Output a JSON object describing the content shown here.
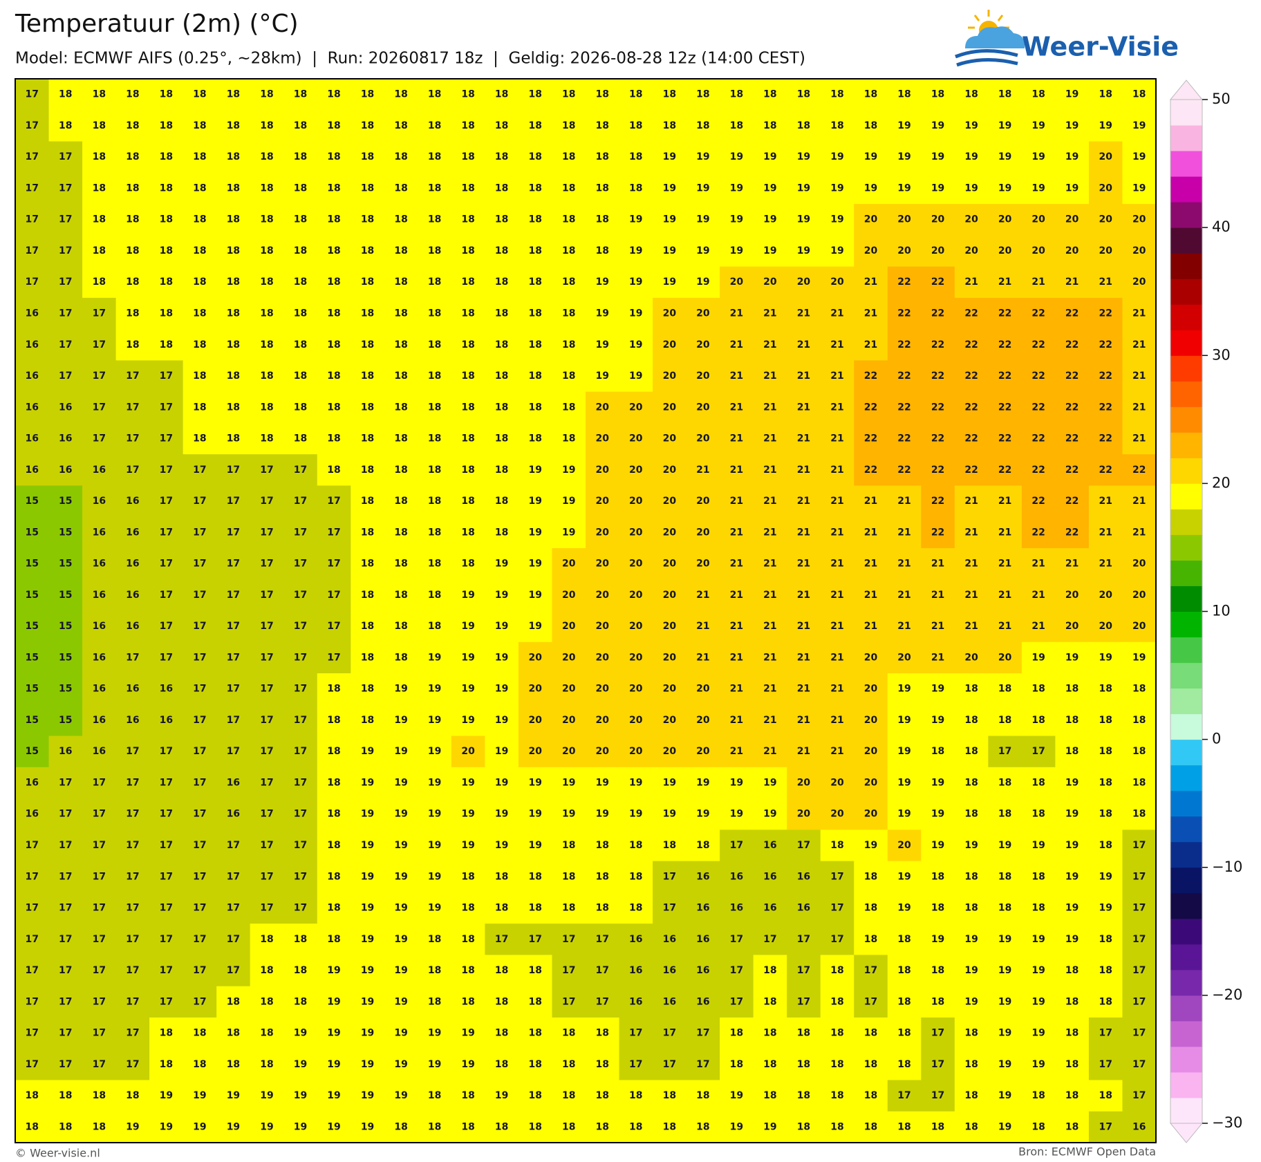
{
  "header": {
    "title": "Temperatuur (2m) (°C)",
    "subtitle": "Model: ECMWF AIFS (0.25°, ~28km)  |  Run: 20260817 18z  |  Geldig: 2026-08-28 12z (14:00 CEST)"
  },
  "logo": {
    "text": "Weer-Visie"
  },
  "grid": {
    "rows": [
      [
        17,
        18,
        18,
        18,
        18,
        18,
        18,
        18,
        18,
        18,
        18,
        18,
        18,
        18,
        18,
        18,
        18,
        18,
        18,
        18,
        18,
        18,
        18,
        18,
        18,
        18,
        18,
        18,
        18,
        18,
        18,
        19,
        18,
        18
      ],
      [
        17,
        18,
        18,
        18,
        18,
        18,
        18,
        18,
        18,
        18,
        18,
        18,
        18,
        18,
        18,
        18,
        18,
        18,
        18,
        18,
        18,
        18,
        18,
        18,
        18,
        18,
        19,
        19,
        19,
        19,
        19,
        19,
        19,
        19
      ],
      [
        17,
        17,
        18,
        18,
        18,
        18,
        18,
        18,
        18,
        18,
        18,
        18,
        18,
        18,
        18,
        18,
        18,
        18,
        18,
        19,
        19,
        19,
        19,
        19,
        19,
        19,
        19,
        19,
        19,
        19,
        19,
        19,
        20,
        19
      ],
      [
        17,
        17,
        18,
        18,
        18,
        18,
        18,
        18,
        18,
        18,
        18,
        18,
        18,
        18,
        18,
        18,
        18,
        18,
        18,
        19,
        19,
        19,
        19,
        19,
        19,
        19,
        19,
        19,
        19,
        19,
        19,
        19,
        20,
        19
      ],
      [
        17,
        17,
        18,
        18,
        18,
        18,
        18,
        18,
        18,
        18,
        18,
        18,
        18,
        18,
        18,
        18,
        18,
        18,
        19,
        19,
        19,
        19,
        19,
        19,
        19,
        20,
        20,
        20,
        20,
        20,
        20,
        20,
        20,
        20
      ],
      [
        17,
        17,
        18,
        18,
        18,
        18,
        18,
        18,
        18,
        18,
        18,
        18,
        18,
        18,
        18,
        18,
        18,
        18,
        19,
        19,
        19,
        19,
        19,
        19,
        19,
        20,
        20,
        20,
        20,
        20,
        20,
        20,
        20,
        20
      ],
      [
        17,
        17,
        18,
        18,
        18,
        18,
        18,
        18,
        18,
        18,
        18,
        18,
        18,
        18,
        18,
        18,
        18,
        19,
        19,
        19,
        19,
        20,
        20,
        20,
        20,
        21,
        22,
        22,
        21,
        21,
        21,
        21,
        21,
        20
      ],
      [
        16,
        17,
        17,
        18,
        18,
        18,
        18,
        18,
        18,
        18,
        18,
        18,
        18,
        18,
        18,
        18,
        18,
        19,
        19,
        20,
        20,
        21,
        21,
        21,
        21,
        21,
        22,
        22,
        22,
        22,
        22,
        22,
        22,
        21
      ],
      [
        16,
        17,
        17,
        18,
        18,
        18,
        18,
        18,
        18,
        18,
        18,
        18,
        18,
        18,
        18,
        18,
        18,
        19,
        19,
        20,
        20,
        21,
        21,
        21,
        21,
        21,
        22,
        22,
        22,
        22,
        22,
        22,
        22,
        21
      ],
      [
        16,
        17,
        17,
        17,
        17,
        18,
        18,
        18,
        18,
        18,
        18,
        18,
        18,
        18,
        18,
        18,
        18,
        19,
        19,
        20,
        20,
        21,
        21,
        21,
        21,
        22,
        22,
        22,
        22,
        22,
        22,
        22,
        22,
        21
      ],
      [
        16,
        16,
        17,
        17,
        17,
        18,
        18,
        18,
        18,
        18,
        18,
        18,
        18,
        18,
        18,
        18,
        18,
        20,
        20,
        20,
        20,
        21,
        21,
        21,
        21,
        22,
        22,
        22,
        22,
        22,
        22,
        22,
        22,
        21
      ],
      [
        16,
        16,
        17,
        17,
        17,
        18,
        18,
        18,
        18,
        18,
        18,
        18,
        18,
        18,
        18,
        18,
        18,
        20,
        20,
        20,
        20,
        21,
        21,
        21,
        21,
        22,
        22,
        22,
        22,
        22,
        22,
        22,
        22,
        21
      ],
      [
        16,
        16,
        16,
        17,
        17,
        17,
        17,
        17,
        17,
        18,
        18,
        18,
        18,
        18,
        18,
        19,
        19,
        20,
        20,
        20,
        21,
        21,
        21,
        21,
        21,
        22,
        22,
        22,
        22,
        22,
        22,
        22,
        22,
        22
      ],
      [
        15,
        15,
        16,
        16,
        17,
        17,
        17,
        17,
        17,
        17,
        18,
        18,
        18,
        18,
        18,
        19,
        19,
        20,
        20,
        20,
        20,
        21,
        21,
        21,
        21,
        21,
        21,
        22,
        21,
        21,
        22,
        22,
        21,
        21
      ],
      [
        15,
        15,
        16,
        16,
        17,
        17,
        17,
        17,
        17,
        17,
        18,
        18,
        18,
        18,
        18,
        19,
        19,
        20,
        20,
        20,
        20,
        21,
        21,
        21,
        21,
        21,
        21,
        22,
        21,
        21,
        22,
        22,
        21,
        21
      ],
      [
        15,
        15,
        16,
        16,
        17,
        17,
        17,
        17,
        17,
        17,
        18,
        18,
        18,
        18,
        19,
        19,
        20,
        20,
        20,
        20,
        20,
        21,
        21,
        21,
        21,
        21,
        21,
        21,
        21,
        21,
        21,
        21,
        21,
        20
      ],
      [
        15,
        15,
        16,
        16,
        17,
        17,
        17,
        17,
        17,
        17,
        18,
        18,
        18,
        19,
        19,
        19,
        20,
        20,
        20,
        20,
        21,
        21,
        21,
        21,
        21,
        21,
        21,
        21,
        21,
        21,
        21,
        20,
        20,
        20
      ],
      [
        15,
        15,
        16,
        16,
        17,
        17,
        17,
        17,
        17,
        17,
        18,
        18,
        18,
        19,
        19,
        19,
        20,
        20,
        20,
        20,
        21,
        21,
        21,
        21,
        21,
        21,
        21,
        21,
        21,
        21,
        21,
        20,
        20,
        20
      ],
      [
        15,
        15,
        16,
        17,
        17,
        17,
        17,
        17,
        17,
        17,
        18,
        18,
        19,
        19,
        19,
        20,
        20,
        20,
        20,
        20,
        21,
        21,
        21,
        21,
        21,
        20,
        20,
        21,
        20,
        20,
        19,
        19,
        19,
        19
      ],
      [
        15,
        15,
        16,
        16,
        16,
        17,
        17,
        17,
        17,
        18,
        18,
        19,
        19,
        19,
        19,
        20,
        20,
        20,
        20,
        20,
        20,
        21,
        21,
        21,
        21,
        20,
        19,
        19,
        18,
        18,
        18,
        18,
        18,
        18
      ],
      [
        15,
        15,
        16,
        16,
        16,
        17,
        17,
        17,
        17,
        18,
        18,
        19,
        19,
        19,
        19,
        20,
        20,
        20,
        20,
        20,
        20,
        21,
        21,
        21,
        21,
        20,
        19,
        19,
        18,
        18,
        18,
        18,
        18,
        18
      ],
      [
        15,
        16,
        16,
        17,
        17,
        17,
        17,
        17,
        17,
        18,
        19,
        19,
        19,
        20,
        19,
        20,
        20,
        20,
        20,
        20,
        20,
        21,
        21,
        21,
        21,
        20,
        19,
        18,
        18,
        17,
        17,
        18,
        18,
        18
      ],
      [
        16,
        17,
        17,
        17,
        17,
        17,
        16,
        17,
        17,
        18,
        19,
        19,
        19,
        19,
        19,
        19,
        19,
        19,
        19,
        19,
        19,
        19,
        19,
        20,
        20,
        20,
        19,
        19,
        18,
        18,
        18,
        19,
        18,
        18
      ],
      [
        16,
        17,
        17,
        17,
        17,
        17,
        16,
        17,
        17,
        18,
        19,
        19,
        19,
        19,
        19,
        19,
        19,
        19,
        19,
        19,
        19,
        19,
        19,
        20,
        20,
        20,
        19,
        19,
        18,
        18,
        18,
        19,
        18,
        18
      ],
      [
        17,
        17,
        17,
        17,
        17,
        17,
        17,
        17,
        17,
        18,
        19,
        19,
        19,
        19,
        19,
        19,
        18,
        18,
        18,
        18,
        18,
        17,
        16,
        17,
        18,
        19,
        20,
        19,
        19,
        19,
        19,
        19,
        18,
        17
      ],
      [
        17,
        17,
        17,
        17,
        17,
        17,
        17,
        17,
        17,
        18,
        19,
        19,
        19,
        18,
        18,
        18,
        18,
        18,
        18,
        17,
        16,
        16,
        16,
        16,
        17,
        18,
        19,
        18,
        18,
        18,
        18,
        19,
        19,
        17
      ],
      [
        17,
        17,
        17,
        17,
        17,
        17,
        17,
        17,
        17,
        18,
        19,
        19,
        19,
        18,
        18,
        18,
        18,
        18,
        18,
        17,
        16,
        16,
        16,
        16,
        17,
        18,
        19,
        18,
        18,
        18,
        18,
        19,
        19,
        17
      ],
      [
        17,
        17,
        17,
        17,
        17,
        17,
        17,
        18,
        18,
        18,
        19,
        19,
        18,
        18,
        17,
        17,
        17,
        17,
        16,
        16,
        16,
        17,
        17,
        17,
        17,
        18,
        18,
        19,
        19,
        19,
        19,
        19,
        18,
        17
      ],
      [
        17,
        17,
        17,
        17,
        17,
        17,
        17,
        18,
        18,
        19,
        19,
        19,
        18,
        18,
        18,
        18,
        17,
        17,
        16,
        16,
        16,
        17,
        18,
        17,
        18,
        17,
        18,
        18,
        19,
        19,
        19,
        18,
        18,
        17
      ],
      [
        17,
        17,
        17,
        17,
        17,
        17,
        18,
        18,
        18,
        19,
        19,
        19,
        18,
        18,
        18,
        18,
        17,
        17,
        16,
        16,
        16,
        17,
        18,
        17,
        18,
        17,
        18,
        18,
        19,
        19,
        19,
        18,
        18,
        17
      ],
      [
        17,
        17,
        17,
        17,
        18,
        18,
        18,
        18,
        19,
        19,
        19,
        19,
        19,
        19,
        18,
        18,
        18,
        18,
        17,
        17,
        17,
        18,
        18,
        18,
        18,
        18,
        18,
        17,
        18,
        19,
        19,
        18,
        17,
        17
      ],
      [
        17,
        17,
        17,
        17,
        18,
        18,
        18,
        18,
        19,
        19,
        19,
        19,
        19,
        19,
        18,
        18,
        18,
        18,
        17,
        17,
        17,
        18,
        18,
        18,
        18,
        18,
        18,
        17,
        18,
        19,
        19,
        18,
        17,
        17
      ],
      [
        18,
        18,
        18,
        18,
        19,
        19,
        19,
        19,
        19,
        19,
        19,
        19,
        18,
        18,
        19,
        18,
        18,
        18,
        18,
        18,
        18,
        19,
        18,
        18,
        18,
        18,
        17,
        17,
        18,
        19,
        18,
        18,
        18,
        17
      ],
      [
        18,
        18,
        18,
        19,
        19,
        19,
        19,
        19,
        19,
        19,
        19,
        18,
        18,
        18,
        18,
        18,
        18,
        18,
        18,
        18,
        18,
        19,
        19,
        18,
        18,
        18,
        18,
        18,
        18,
        19,
        18,
        18,
        17,
        16
      ]
    ]
  },
  "colorbar": {
    "colors": [
      "#fde6fa",
      "#fab4f0",
      "#e68ce6",
      "#c864d2",
      "#a046be",
      "#7828aa",
      "#5a1496",
      "#3c0a78",
      "#140a46",
      "#0a1464",
      "#0a2d8c",
      "#0a50b4",
      "#0078d2",
      "#00a0e6",
      "#32c8f5",
      "#c8fadc",
      "#a0eba0",
      "#78dc78",
      "#46c846",
      "#00b400",
      "#008c00",
      "#46b400",
      "#8cc800",
      "#c8d200",
      "#ffff00",
      "#ffd700",
      "#ffb400",
      "#ff8c00",
      "#ff6400",
      "#ff3c00",
      "#f00000",
      "#d20000",
      "#aa0000",
      "#820000",
      "#500a32",
      "#8c0a6e",
      "#c800aa",
      "#f050dc",
      "#fab4e1",
      "#fde6f5"
    ],
    "ticks": [
      {
        "value": -30,
        "label": "−30"
      },
      {
        "value": -20,
        "label": "−20"
      },
      {
        "value": -10,
        "label": "−10"
      },
      0,
      10,
      20,
      30,
      40,
      50
    ]
  },
  "footer": {
    "left": "© Weer-visie.nl",
    "right": "Bron: ECMWF Open Data"
  }
}
